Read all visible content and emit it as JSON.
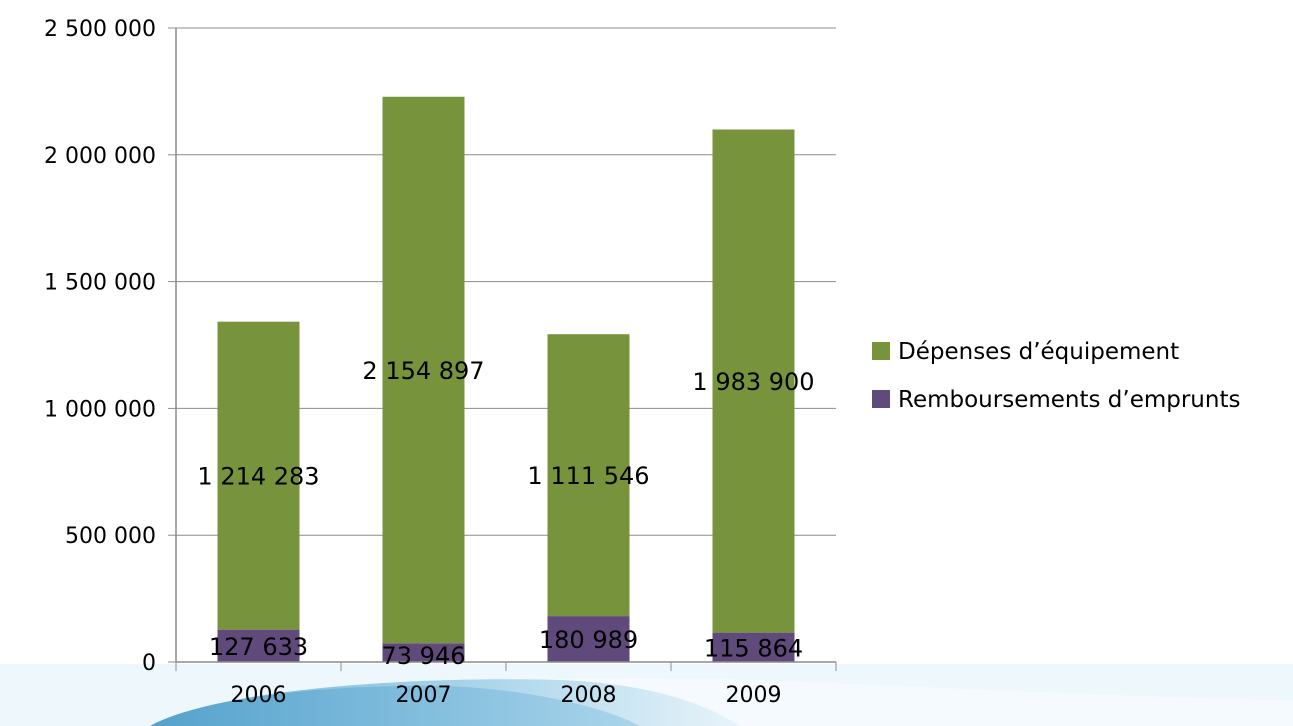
{
  "chart_data": {
    "type": "bar",
    "stacked": true,
    "categories": [
      "2006",
      "2007",
      "2008",
      "2009"
    ],
    "series": [
      {
        "name": "Remboursements d’emprunts",
        "color": "#604a7b",
        "values": [
          127633,
          73946,
          180989,
          115864
        ],
        "labels": [
          "127 633",
          "73 946",
          "180 989",
          "115 864"
        ]
      },
      {
        "name": "Dépenses d’équipement",
        "color": "#77933c",
        "values": [
          1214283,
          2154897,
          1111546,
          1983900
        ],
        "labels": [
          "1 214 283",
          "2 154 897",
          "1 111 546",
          "1 983 900"
        ]
      }
    ],
    "ylim": [
      0,
      2500000
    ],
    "yticks": [
      0,
      500000,
      1000000,
      1500000,
      2000000,
      2500000
    ],
    "ytick_labels": [
      "0",
      "500 000",
      "1 000 000",
      "1 500 000",
      "2 000 000",
      "2 500 000"
    ],
    "grid": true,
    "legend_position": "right"
  }
}
